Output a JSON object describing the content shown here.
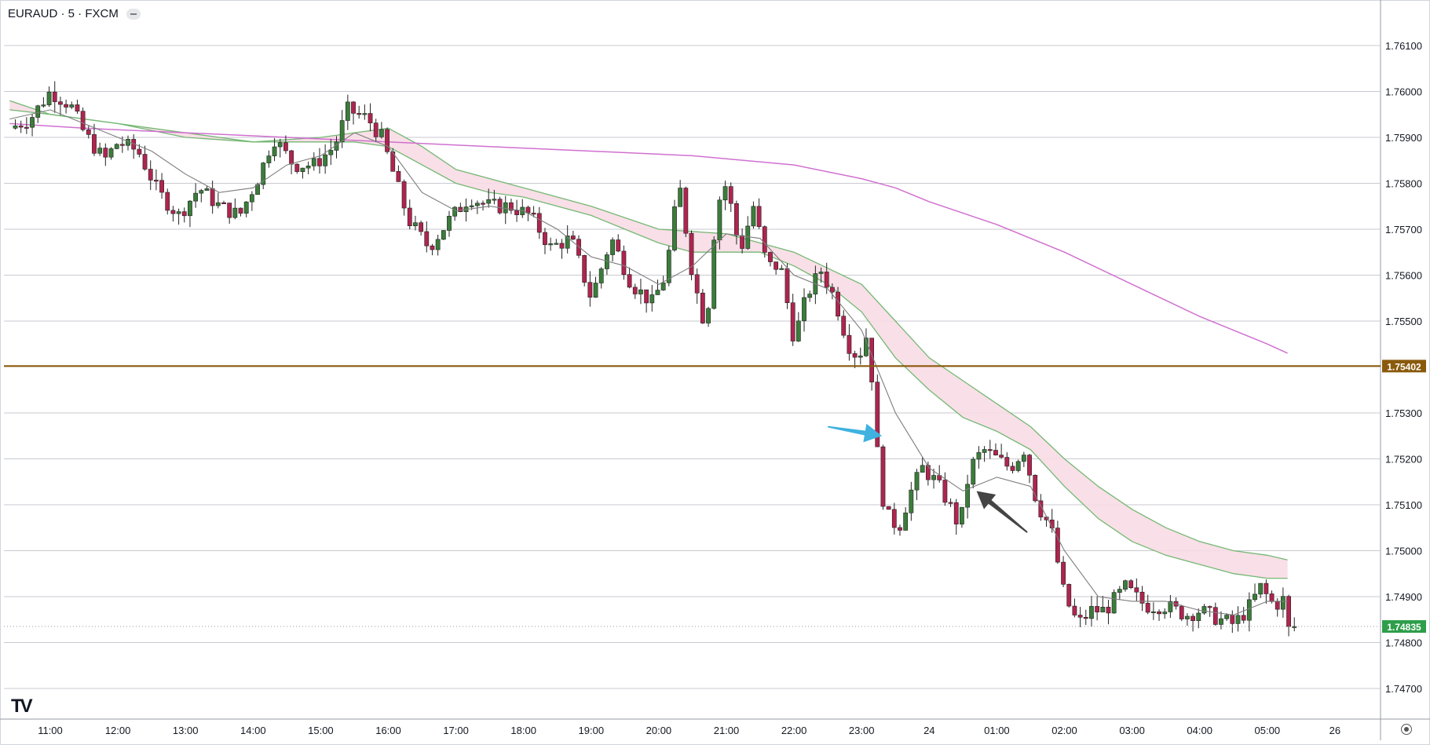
{
  "header": {
    "symbol_line": "EURAUD · 5 · FXCM"
  },
  "logo_text": "TV",
  "colors": {
    "bull": "#3a7d3a",
    "bear": "#b0244f",
    "ema_band_fill": "#f8dce4",
    "ema_line": "#74b874",
    "long_ma": "#d070d0",
    "horizontal_level": "#8a5a0c",
    "price_tag": "#2e9e4a",
    "blue_arrow": "#3fb2e0",
    "gray_arrow": "#444444"
  },
  "chart_data": {
    "type": "candlestick",
    "symbol": "EURAUD",
    "interval": "5",
    "source": "FXCM",
    "x_ticks": [
      "11:00",
      "12:00",
      "13:00",
      "14:00",
      "15:00",
      "16:00",
      "17:00",
      "18:00",
      "19:00",
      "20:00",
      "21:00",
      "22:00",
      "23:00",
      "24",
      "01:00",
      "02:00",
      "03:00",
      "04:00",
      "05:00",
      "26"
    ],
    "y_ticks": [
      "1.76100",
      "1.76000",
      "1.75900",
      "1.75800",
      "1.75700",
      "1.75600",
      "1.75500",
      "1.75300",
      "1.75200",
      "1.75100",
      "1.75000",
      "1.74900",
      "1.74800",
      "1.74700"
    ],
    "ylim": [
      1.7463,
      1.7616
    ],
    "horizontal_level": {
      "value": 1.75402,
      "label": "1.75402"
    },
    "last_price": {
      "value": 1.74835,
      "label": "1.74835"
    },
    "grid": true,
    "close_path": [
      [
        -0.6,
        1.7592
      ],
      [
        -0.3,
        1.7594
      ],
      [
        0.0,
        1.76
      ],
      [
        0.3,
        1.7597
      ],
      [
        0.5,
        1.7591
      ],
      [
        0.8,
        1.7585
      ],
      [
        1.0,
        1.7589
      ],
      [
        1.3,
        1.7587
      ],
      [
        1.6,
        1.7578
      ],
      [
        1.9,
        1.7573
      ],
      [
        2.2,
        1.7579
      ],
      [
        2.5,
        1.7575
      ],
      [
        2.8,
        1.7573
      ],
      [
        3.1,
        1.7582
      ],
      [
        3.3,
        1.759
      ],
      [
        3.6,
        1.7584
      ],
      [
        3.9,
        1.7584
      ],
      [
        4.2,
        1.7588
      ],
      [
        4.4,
        1.7596
      ],
      [
        4.7,
        1.7594
      ],
      [
        4.9,
        1.759
      ],
      [
        5.1,
        1.7581
      ],
      [
        5.3,
        1.7572
      ],
      [
        5.6,
        1.7566
      ],
      [
        5.9,
        1.7572
      ],
      [
        6.2,
        1.7577
      ],
      [
        6.5,
        1.7575
      ],
      [
        6.8,
        1.7575
      ],
      [
        7.1,
        1.7573
      ],
      [
        7.4,
        1.7566
      ],
      [
        7.7,
        1.7568
      ],
      [
        8.0,
        1.7555
      ],
      [
        8.3,
        1.7568
      ],
      [
        8.6,
        1.7558
      ],
      [
        8.9,
        1.7554
      ],
      [
        9.1,
        1.756
      ],
      [
        9.3,
        1.758
      ],
      [
        9.5,
        1.756
      ],
      [
        9.7,
        1.7548
      ],
      [
        9.85,
        1.7575
      ],
      [
        10.0,
        1.758
      ],
      [
        10.2,
        1.7565
      ],
      [
        10.4,
        1.7575
      ],
      [
        10.6,
        1.7562
      ],
      [
        10.8,
        1.7562
      ],
      [
        11.0,
        1.7546
      ],
      [
        11.2,
        1.7556
      ],
      [
        11.4,
        1.7561
      ],
      [
        11.6,
        1.7555
      ],
      [
        11.8,
        1.7545
      ],
      [
        11.95,
        1.7542
      ],
      [
        12.1,
        1.7548
      ],
      [
        12.25,
        1.7518
      ],
      [
        12.35,
        1.7508
      ],
      [
        12.55,
        1.7505
      ],
      [
        12.7,
        1.7512
      ],
      [
        12.9,
        1.7518
      ],
      [
        13.1,
        1.7515
      ],
      [
        13.3,
        1.751
      ],
      [
        13.45,
        1.7505
      ],
      [
        13.6,
        1.7518
      ],
      [
        13.8,
        1.7522
      ],
      [
        14.0,
        1.752
      ],
      [
        14.2,
        1.7518
      ],
      [
        14.4,
        1.7522
      ],
      [
        14.6,
        1.751
      ],
      [
        14.8,
        1.7505
      ],
      [
        15.0,
        1.749
      ],
      [
        15.2,
        1.7484
      ],
      [
        15.4,
        1.7487
      ],
      [
        15.6,
        1.7487
      ],
      [
        15.9,
        1.7492
      ],
      [
        16.2,
        1.7488
      ],
      [
        16.5,
        1.7488
      ],
      [
        16.8,
        1.7486
      ],
      [
        17.0,
        1.7487
      ],
      [
        17.3,
        1.7485
      ],
      [
        17.5,
        1.7484
      ],
      [
        17.7,
        1.7487
      ],
      [
        17.9,
        1.7492
      ],
      [
        18.1,
        1.7488
      ],
      [
        18.3,
        1.749
      ],
      [
        18.4,
        1.74835
      ]
    ],
    "ema_fast": [
      [
        -0.6,
        1.7594
      ],
      [
        0.0,
        1.7596
      ],
      [
        0.5,
        1.7593
      ],
      [
        1.0,
        1.759
      ],
      [
        1.5,
        1.7587
      ],
      [
        2.0,
        1.7582
      ],
      [
        2.5,
        1.7578
      ],
      [
        3.0,
        1.7579
      ],
      [
        3.5,
        1.7584
      ],
      [
        4.0,
        1.7586
      ],
      [
        4.5,
        1.7591
      ],
      [
        5.0,
        1.7588
      ],
      [
        5.5,
        1.7578
      ],
      [
        6.0,
        1.7574
      ],
      [
        6.5,
        1.7575
      ],
      [
        7.0,
        1.7574
      ],
      [
        7.5,
        1.757
      ],
      [
        8.0,
        1.7564
      ],
      [
        8.5,
        1.7562
      ],
      [
        9.0,
        1.7558
      ],
      [
        9.5,
        1.7562
      ],
      [
        10.0,
        1.7569
      ],
      [
        10.5,
        1.7568
      ],
      [
        11.0,
        1.756
      ],
      [
        11.5,
        1.7557
      ],
      [
        12.0,
        1.7548
      ],
      [
        12.5,
        1.753
      ],
      [
        13.0,
        1.7518
      ],
      [
        13.5,
        1.7513
      ],
      [
        14.0,
        1.7516
      ],
      [
        14.5,
        1.7514
      ],
      [
        15.0,
        1.75
      ],
      [
        15.5,
        1.749
      ],
      [
        16.0,
        1.7489
      ],
      [
        16.5,
        1.7489
      ],
      [
        17.0,
        1.7487
      ],
      [
        17.5,
        1.7486
      ],
      [
        18.0,
        1.7489
      ],
      [
        18.3,
        1.7489
      ]
    ],
    "ema_slow": [
      [
        -0.6,
        1.7596
      ],
      [
        0.0,
        1.7595
      ],
      [
        0.5,
        1.7594
      ],
      [
        1.0,
        1.7593
      ],
      [
        1.5,
        1.7592
      ],
      [
        2.0,
        1.7591
      ],
      [
        2.5,
        1.759
      ],
      [
        3.0,
        1.7589
      ],
      [
        3.5,
        1.7589
      ],
      [
        4.0,
        1.7589
      ],
      [
        4.5,
        1.7589
      ],
      [
        5.0,
        1.7588
      ],
      [
        5.5,
        1.7584
      ],
      [
        6.0,
        1.758
      ],
      [
        6.5,
        1.7578
      ],
      [
        7.0,
        1.7577
      ],
      [
        7.5,
        1.7575
      ],
      [
        8.0,
        1.7573
      ],
      [
        8.5,
        1.757
      ],
      [
        9.0,
        1.7567
      ],
      [
        9.5,
        1.7565
      ],
      [
        10.0,
        1.7565
      ],
      [
        10.5,
        1.7565
      ],
      [
        11.0,
        1.7562
      ],
      [
        11.5,
        1.7558
      ],
      [
        12.0,
        1.7552
      ],
      [
        12.5,
        1.7542
      ],
      [
        13.0,
        1.7535
      ],
      [
        13.5,
        1.7529
      ],
      [
        14.0,
        1.7526
      ],
      [
        14.5,
        1.7522
      ],
      [
        15.0,
        1.7514
      ],
      [
        15.5,
        1.7507
      ],
      [
        16.0,
        1.7502
      ],
      [
        16.5,
        1.7499
      ],
      [
        17.0,
        1.7497
      ],
      [
        17.5,
        1.7495
      ],
      [
        18.0,
        1.7494
      ],
      [
        18.3,
        1.7494
      ]
    ],
    "ema_band": [
      [
        -0.6,
        1.7598
      ],
      [
        0.0,
        1.7595
      ],
      [
        1.0,
        1.7593
      ],
      [
        2.0,
        1.759
      ],
      [
        3.0,
        1.7589
      ],
      [
        4.0,
        1.759
      ],
      [
        5.0,
        1.7592
      ],
      [
        5.5,
        1.7588
      ],
      [
        6.0,
        1.7583
      ],
      [
        7.0,
        1.7579
      ],
      [
        8.0,
        1.7575
      ],
      [
        9.0,
        1.757
      ],
      [
        10.0,
        1.7569
      ],
      [
        11.0,
        1.7565
      ],
      [
        12.0,
        1.7558
      ],
      [
        12.5,
        1.755
      ],
      [
        13.0,
        1.7542
      ],
      [
        13.5,
        1.7537
      ],
      [
        14.0,
        1.7532
      ],
      [
        14.5,
        1.7527
      ],
      [
        15.0,
        1.752
      ],
      [
        15.5,
        1.7514
      ],
      [
        16.0,
        1.7509
      ],
      [
        16.5,
        1.7505
      ],
      [
        17.0,
        1.7502
      ],
      [
        17.5,
        1.75
      ],
      [
        18.0,
        1.7499
      ],
      [
        18.3,
        1.7498
      ]
    ],
    "long_ma": [
      [
        -0.6,
        1.7593
      ],
      [
        0.5,
        1.7592
      ],
      [
        2.0,
        1.7591
      ],
      [
        3.5,
        1.759
      ],
      [
        5.0,
        1.7589
      ],
      [
        6.5,
        1.7588
      ],
      [
        8.0,
        1.7587
      ],
      [
        9.5,
        1.7586
      ],
      [
        11.0,
        1.7584
      ],
      [
        12.0,
        1.7581
      ],
      [
        12.5,
        1.7579
      ],
      [
        13.0,
        1.7576
      ],
      [
        14.0,
        1.7571
      ],
      [
        15.0,
        1.7565
      ],
      [
        16.0,
        1.7558
      ],
      [
        17.0,
        1.7551
      ],
      [
        18.0,
        1.7545
      ],
      [
        18.3,
        1.7543
      ]
    ],
    "annotations": [
      {
        "type": "arrow",
        "color": "blue",
        "from": [
          11.5,
          1.7527
        ],
        "to": [
          12.3,
          1.7525
        ]
      },
      {
        "type": "arrow",
        "color": "gray",
        "from": [
          14.45,
          1.7504
        ],
        "to": [
          13.7,
          1.7513
        ]
      }
    ]
  }
}
